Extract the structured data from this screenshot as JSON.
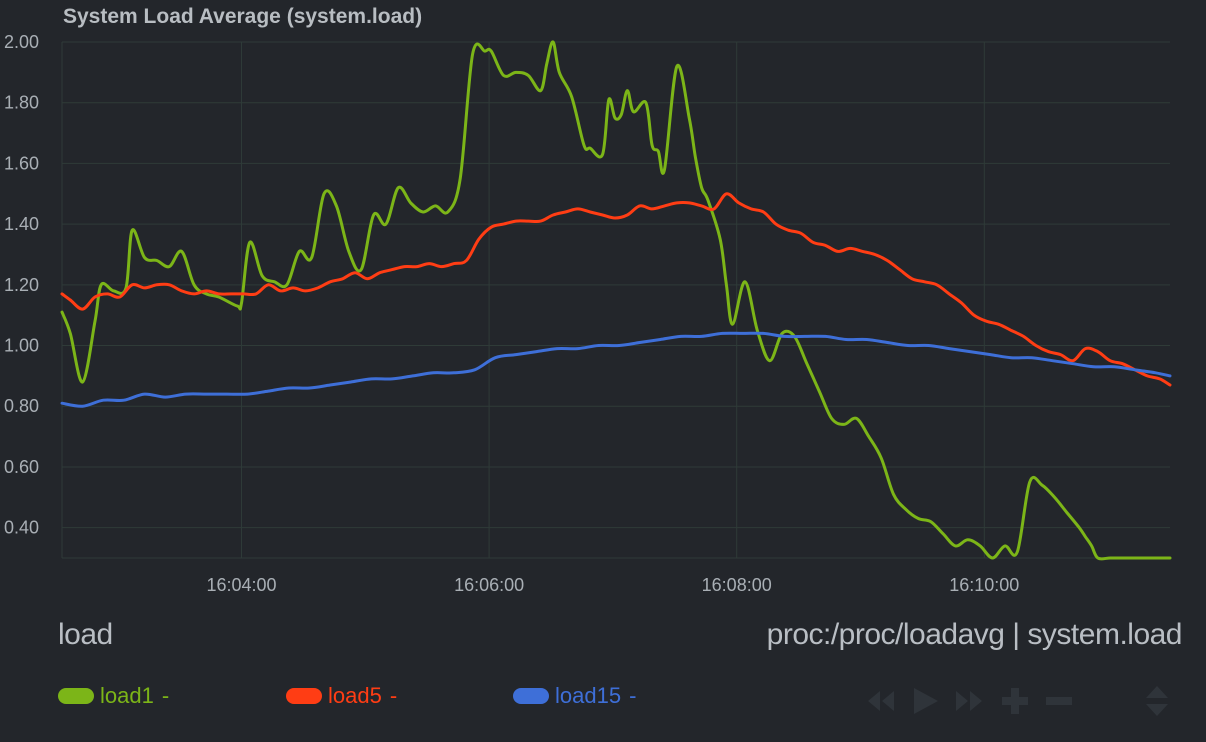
{
  "chart": {
    "title": "System Load Average (system.load)",
    "family": "load",
    "context": "proc:/proc/loadavg | system.load",
    "colors": {
      "load1": "#7cb518",
      "load5": "#ff3d14",
      "load15": "#3e6fd8",
      "background": "#23262b",
      "grid": "#2f3b38"
    }
  },
  "legend": [
    {
      "key": "load1",
      "label": "load1",
      "value": "-",
      "color": "#7cb518"
    },
    {
      "key": "load5",
      "label": "load5",
      "value": "-",
      "color": "#ff3d14"
    },
    {
      "key": "load15",
      "label": "load15",
      "value": "-",
      "color": "#3e6fd8"
    }
  ],
  "toolbox": [
    "rewind-icon",
    "play-icon",
    "fast-forward-icon",
    "zoom-in-icon",
    "zoom-out-icon",
    "resize-icon"
  ],
  "chart_data": {
    "type": "line",
    "title": "System Load Average (system.load)",
    "xlabel": "",
    "ylabel": "",
    "ylim": [
      0.3,
      2.0
    ],
    "xlim": [
      "16:02:33",
      "16:11:30"
    ],
    "y_ticks": [
      "2.00",
      "1.80",
      "1.60",
      "1.40",
      "1.20",
      "1.00",
      "0.80",
      "0.60",
      "0.40"
    ],
    "y_tick_values": [
      2.0,
      1.8,
      1.6,
      1.4,
      1.2,
      1.0,
      0.8,
      0.6,
      0.4
    ],
    "x_ticks": [
      "16:04:00",
      "16:06:00",
      "16:08:00",
      "16:10:00"
    ],
    "grid": true,
    "legend_position": "bottom-left",
    "series": [
      {
        "name": "load1",
        "color": "#7cb518",
        "x": [
          "16:02:33",
          "16:02:37",
          "16:02:43",
          "16:02:49",
          "16:02:52",
          "16:02:58",
          "16:03:04",
          "16:03:07",
          "16:03:13",
          "16:03:19",
          "16:03:25",
          "16:03:31",
          "16:03:37",
          "16:03:43",
          "16:03:49",
          "16:03:58",
          "16:04:00",
          "16:04:04",
          "16:04:10",
          "16:04:16",
          "16:04:22",
          "16:04:28",
          "16:04:34",
          "16:04:40",
          "16:04:46",
          "16:04:52",
          "16:04:58",
          "16:05:04",
          "16:05:10",
          "16:05:16",
          "16:05:22",
          "16:05:28",
          "16:05:34",
          "16:05:40",
          "16:05:46",
          "16:05:52",
          "16:05:58",
          "16:06:01",
          "16:06:07",
          "16:06:13",
          "16:06:19",
          "16:06:25",
          "16:06:28",
          "16:06:31",
          "16:06:34",
          "16:06:40",
          "16:06:46",
          "16:06:49",
          "16:06:55",
          "16:06:58",
          "16:07:01",
          "16:07:04",
          "16:07:07",
          "16:07:10",
          "16:07:16",
          "16:07:19",
          "16:07:22",
          "16:07:25",
          "16:07:31",
          "16:07:37",
          "16:07:40",
          "16:07:43",
          "16:07:46",
          "16:07:52",
          "16:07:55",
          "16:07:58",
          "16:08:04",
          "16:08:10",
          "16:08:16",
          "16:08:22",
          "16:08:28",
          "16:08:34",
          "16:08:40",
          "16:08:46",
          "16:08:52",
          "16:08:58",
          "16:09:04",
          "16:09:10",
          "16:09:16",
          "16:09:22",
          "16:09:28",
          "16:09:34",
          "16:09:40",
          "16:09:46",
          "16:09:52",
          "16:09:58",
          "16:10:04",
          "16:10:10",
          "16:10:16",
          "16:10:22",
          "16:10:28",
          "16:10:34",
          "16:10:40",
          "16:10:46",
          "16:10:49",
          "16:10:52",
          "16:10:55",
          "16:11:01",
          "16:11:07",
          "16:11:13",
          "16:11:19",
          "16:11:25",
          "16:11:30"
        ],
        "values": [
          1.11,
          1.04,
          0.88,
          1.08,
          1.2,
          1.18,
          1.19,
          1.38,
          1.29,
          1.28,
          1.26,
          1.31,
          1.2,
          1.17,
          1.16,
          1.13,
          1.14,
          1.34,
          1.23,
          1.21,
          1.2,
          1.31,
          1.29,
          1.5,
          1.46,
          1.31,
          1.25,
          1.43,
          1.4,
          1.52,
          1.47,
          1.44,
          1.46,
          1.44,
          1.55,
          1.96,
          1.97,
          1.97,
          1.89,
          1.9,
          1.89,
          1.84,
          1.93,
          2.0,
          1.9,
          1.82,
          1.66,
          1.65,
          1.63,
          1.81,
          1.75,
          1.76,
          1.84,
          1.77,
          1.8,
          1.66,
          1.64,
          1.58,
          1.92,
          1.75,
          1.62,
          1.52,
          1.48,
          1.35,
          1.2,
          1.07,
          1.21,
          1.05,
          0.95,
          1.04,
          1.03,
          0.94,
          0.85,
          0.76,
          0.74,
          0.76,
          0.7,
          0.63,
          0.51,
          0.46,
          0.43,
          0.42,
          0.38,
          0.34,
          0.36,
          0.34,
          0.3,
          0.34,
          0.32,
          0.55,
          0.54,
          0.5,
          0.45,
          0.4,
          0.37,
          0.34,
          0.3,
          0.3,
          0.3,
          0.3,
          0.3,
          0.3,
          0.3
        ]
      },
      {
        "name": "load5",
        "color": "#ff3d14",
        "x": [
          "16:02:33",
          "16:02:37",
          "16:02:43",
          "16:02:49",
          "16:02:55",
          "16:03:01",
          "16:03:07",
          "16:03:13",
          "16:03:19",
          "16:03:25",
          "16:03:31",
          "16:03:37",
          "16:03:43",
          "16:03:49",
          "16:03:55",
          "16:04:01",
          "16:04:07",
          "16:04:13",
          "16:04:19",
          "16:04:25",
          "16:04:31",
          "16:04:37",
          "16:04:43",
          "16:04:49",
          "16:04:55",
          "16:05:01",
          "16:05:07",
          "16:05:13",
          "16:05:19",
          "16:05:25",
          "16:05:31",
          "16:05:37",
          "16:05:43",
          "16:05:49",
          "16:05:55",
          "16:06:01",
          "16:06:07",
          "16:06:13",
          "16:06:19",
          "16:06:25",
          "16:06:31",
          "16:06:37",
          "16:06:43",
          "16:06:49",
          "16:06:55",
          "16:07:01",
          "16:07:07",
          "16:07:13",
          "16:07:19",
          "16:07:25",
          "16:07:31",
          "16:07:37",
          "16:07:43",
          "16:07:49",
          "16:07:55",
          "16:08:01",
          "16:08:07",
          "16:08:13",
          "16:08:19",
          "16:08:25",
          "16:08:31",
          "16:08:37",
          "16:08:43",
          "16:08:49",
          "16:08:55",
          "16:09:01",
          "16:09:07",
          "16:09:13",
          "16:09:19",
          "16:09:25",
          "16:09:31",
          "16:09:37",
          "16:09:43",
          "16:09:49",
          "16:09:55",
          "16:10:01",
          "16:10:07",
          "16:10:13",
          "16:10:19",
          "16:10:25",
          "16:10:31",
          "16:10:37",
          "16:10:43",
          "16:10:49",
          "16:10:55",
          "16:11:01",
          "16:11:07",
          "16:11:13",
          "16:11:19",
          "16:11:25",
          "16:11:30"
        ],
        "values": [
          1.17,
          1.15,
          1.12,
          1.16,
          1.17,
          1.16,
          1.2,
          1.19,
          1.2,
          1.2,
          1.18,
          1.17,
          1.18,
          1.17,
          1.17,
          1.17,
          1.17,
          1.2,
          1.18,
          1.19,
          1.18,
          1.19,
          1.21,
          1.22,
          1.24,
          1.22,
          1.24,
          1.25,
          1.26,
          1.26,
          1.27,
          1.26,
          1.27,
          1.28,
          1.35,
          1.39,
          1.4,
          1.41,
          1.41,
          1.41,
          1.43,
          1.44,
          1.45,
          1.44,
          1.43,
          1.42,
          1.43,
          1.46,
          1.45,
          1.46,
          1.47,
          1.47,
          1.46,
          1.45,
          1.5,
          1.47,
          1.45,
          1.44,
          1.4,
          1.38,
          1.37,
          1.34,
          1.33,
          1.31,
          1.32,
          1.31,
          1.3,
          1.28,
          1.25,
          1.22,
          1.21,
          1.2,
          1.17,
          1.14,
          1.1,
          1.08,
          1.07,
          1.05,
          1.03,
          1.0,
          0.98,
          0.97,
          0.95,
          0.99,
          0.98,
          0.95,
          0.94,
          0.92,
          0.9,
          0.89,
          0.87
        ]
      },
      {
        "name": "load15",
        "color": "#3e6fd8",
        "x": [
          "16:02:33",
          "16:02:43",
          "16:02:53",
          "16:03:03",
          "16:03:13",
          "16:03:23",
          "16:03:33",
          "16:03:43",
          "16:03:53",
          "16:04:03",
          "16:04:13",
          "16:04:23",
          "16:04:33",
          "16:04:43",
          "16:04:53",
          "16:05:03",
          "16:05:13",
          "16:05:23",
          "16:05:33",
          "16:05:43",
          "16:05:53",
          "16:06:03",
          "16:06:13",
          "16:06:23",
          "16:06:33",
          "16:06:43",
          "16:06:53",
          "16:07:03",
          "16:07:13",
          "16:07:23",
          "16:07:33",
          "16:07:43",
          "16:07:53",
          "16:08:03",
          "16:08:13",
          "16:08:23",
          "16:08:33",
          "16:08:43",
          "16:08:53",
          "16:09:03",
          "16:09:13",
          "16:09:23",
          "16:09:33",
          "16:09:43",
          "16:09:53",
          "16:10:03",
          "16:10:13",
          "16:10:23",
          "16:10:33",
          "16:10:43",
          "16:10:53",
          "16:11:03",
          "16:11:13",
          "16:11:23",
          "16:11:30"
        ],
        "values": [
          0.81,
          0.8,
          0.82,
          0.82,
          0.84,
          0.83,
          0.84,
          0.84,
          0.84,
          0.84,
          0.85,
          0.86,
          0.86,
          0.87,
          0.88,
          0.89,
          0.89,
          0.9,
          0.91,
          0.91,
          0.92,
          0.96,
          0.97,
          0.98,
          0.99,
          0.99,
          1.0,
          1.0,
          1.01,
          1.02,
          1.03,
          1.03,
          1.04,
          1.04,
          1.04,
          1.03,
          1.03,
          1.03,
          1.02,
          1.02,
          1.01,
          1.0,
          1.0,
          0.99,
          0.98,
          0.97,
          0.96,
          0.96,
          0.95,
          0.94,
          0.93,
          0.93,
          0.92,
          0.91,
          0.9
        ]
      }
    ]
  }
}
